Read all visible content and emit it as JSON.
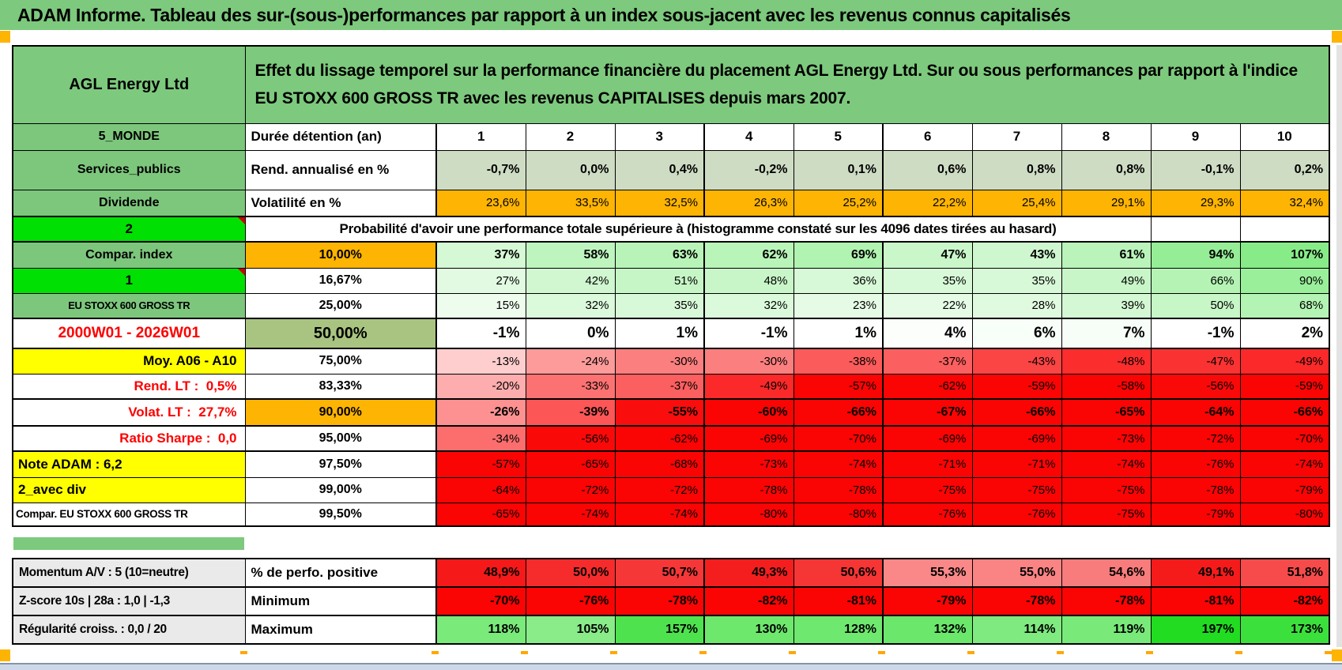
{
  "title": "ADAM Informe. Tableau des sur-(sous-)performances par rapport à un index sous-jacent avec les revenus connus capitalisés",
  "security_name": "AGL Energy Ltd",
  "description": "Effet du lissage temporel sur la performance financière du placement AGL Energy Ltd. Sur ou sous performances par rapport à l'indice EU STOXX 600 GROSS TR avec les revenus CAPITALISES depuis mars 2007.",
  "colors": {
    "header_green": "#7dc97d",
    "bright_green": "#00e003",
    "orange": "#fdb402",
    "sage": "#cfdcc4",
    "olive": "#a9c480",
    "yellow": "#ffff00",
    "red_text": "#fe0000",
    "pure_red": "#fa0404",
    "scale_green": "#1edb1e",
    "gray_label": "#eaeaea"
  },
  "rows": [
    {
      "id": "duree",
      "a": "5_MONDE",
      "b": "Durée détention (an)",
      "values": [
        "1",
        "2",
        "3",
        "4",
        "5",
        "6",
        "7",
        "8",
        "9",
        "10"
      ]
    },
    {
      "id": "rend",
      "a": "Services_publics",
      "b": "Rend. annualisé en %",
      "values": [
        "-0,7%",
        "0,0%",
        "0,4%",
        "-0,2%",
        "0,1%",
        "0,6%",
        "0,8%",
        "0,8%",
        "-0,1%",
        "0,2%"
      ]
    },
    {
      "id": "volat",
      "a": "Dividende",
      "b": "Volatilité en %",
      "values": [
        "23,6%",
        "33,5%",
        "32,5%",
        "26,3%",
        "25,2%",
        "22,2%",
        "25,4%",
        "29,1%",
        "29,3%",
        "32,4%"
      ]
    },
    {
      "id": "proba",
      "a": "2",
      "note": "Probabilité d'avoir une performance totale supérieure à (histogramme constaté sur les 4096 dates tirées au hasard)"
    },
    {
      "id": "p10",
      "a": "Compar. index",
      "b": "10,00%",
      "values": [
        "37%",
        "58%",
        "63%",
        "62%",
        "69%",
        "47%",
        "43%",
        "61%",
        "94%",
        "107%"
      ]
    },
    {
      "id": "p16",
      "a": "1",
      "b": "16,67%",
      "values": [
        "27%",
        "42%",
        "51%",
        "48%",
        "36%",
        "35%",
        "35%",
        "49%",
        "66%",
        "90%"
      ]
    },
    {
      "id": "p25",
      "a": "EU STOXX 600 GROSS TR",
      "b": "25,00%",
      "values": [
        "15%",
        "32%",
        "35%",
        "32%",
        "23%",
        "22%",
        "28%",
        "39%",
        "50%",
        "68%"
      ]
    },
    {
      "id": "p50",
      "a": "2000W01 - 2026W01",
      "b": "50,00%",
      "values": [
        "-1%",
        "0%",
        "1%",
        "-1%",
        "1%",
        "4%",
        "6%",
        "7%",
        "-1%",
        "2%"
      ]
    },
    {
      "id": "p75",
      "a": "Moy. A06 - A10",
      "b": "75,00%",
      "values": [
        "-13%",
        "-24%",
        "-30%",
        "-30%",
        "-38%",
        "-37%",
        "-43%",
        "-48%",
        "-47%",
        "-49%"
      ]
    },
    {
      "id": "p83",
      "a": "Rend. LT :  0,5%",
      "b": "83,33%",
      "values": [
        "-20%",
        "-33%",
        "-37%",
        "-49%",
        "-57%",
        "-62%",
        "-59%",
        "-58%",
        "-56%",
        "-59%"
      ]
    },
    {
      "id": "p90",
      "a": "Volat. LT :  27,7%",
      "b": "90,00%",
      "values": [
        "-26%",
        "-39%",
        "-55%",
        "-60%",
        "-66%",
        "-67%",
        "-66%",
        "-65%",
        "-64%",
        "-66%"
      ]
    },
    {
      "id": "p95",
      "a": "Ratio Sharpe :  0,0",
      "b": "95,00%",
      "values": [
        "-34%",
        "-56%",
        "-62%",
        "-69%",
        "-70%",
        "-69%",
        "-69%",
        "-73%",
        "-72%",
        "-70%"
      ]
    },
    {
      "id": "p975",
      "a": "Note ADAM : 6,2",
      "b": "97,50%",
      "values": [
        "-57%",
        "-65%",
        "-68%",
        "-73%",
        "-74%",
        "-71%",
        "-71%",
        "-74%",
        "-76%",
        "-74%"
      ]
    },
    {
      "id": "p99",
      "a": "2_avec div",
      "b": "99,00%",
      "values": [
        "-64%",
        "-72%",
        "-72%",
        "-78%",
        "-78%",
        "-75%",
        "-75%",
        "-75%",
        "-78%",
        "-79%"
      ]
    },
    {
      "id": "p995",
      "a": "Compar. EU STOXX 600 GROSS TR",
      "b": "99,50%",
      "values": [
        "-65%",
        "-74%",
        "-74%",
        "-80%",
        "-80%",
        "-76%",
        "-76%",
        "-75%",
        "-79%",
        "-80%"
      ]
    }
  ],
  "bottom_rows": [
    {
      "id": "pos",
      "a": "Momentum A/V : 5 (10=neutre)",
      "b": "% de perfo. positive",
      "values": [
        "48,9%",
        "50,0%",
        "50,7%",
        "49,3%",
        "50,6%",
        "55,3%",
        "55,0%",
        "54,6%",
        "49,1%",
        "51,8%"
      ]
    },
    {
      "id": "min",
      "a": "Z-score 10s | 28a : 1,0 | -1,3",
      "b": "Minimum",
      "values": [
        "-70%",
        "-76%",
        "-78%",
        "-82%",
        "-81%",
        "-79%",
        "-78%",
        "-78%",
        "-81%",
        "-82%"
      ]
    },
    {
      "id": "max",
      "a": "Régularité croiss. : 0,0 / 20",
      "b": "Maximum",
      "values": [
        "118%",
        "105%",
        "157%",
        "130%",
        "128%",
        "132%",
        "114%",
        "119%",
        "197%",
        "173%"
      ]
    }
  ]
}
